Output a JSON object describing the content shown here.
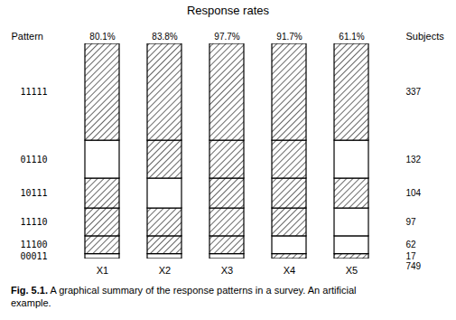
{
  "chart_data": {
    "type": "bar",
    "stacked": true,
    "title": "Response rates",
    "categories": [
      "X1",
      "X2",
      "X3",
      "X4",
      "X5"
    ],
    "top_labels": [
      "80.1%",
      "83.8%",
      "97.7%",
      "91.7%",
      "61.1%"
    ],
    "series": [
      {
        "name": "00011",
        "values": [
          17,
          17,
          17,
          17,
          17
        ]
      },
      {
        "name": "11100",
        "values": [
          62,
          62,
          62,
          62,
          62
        ]
      },
      {
        "name": "11110",
        "values": [
          97,
          97,
          97,
          97,
          97
        ]
      },
      {
        "name": "10111",
        "values": [
          104,
          104,
          104,
          104,
          104
        ]
      },
      {
        "name": "01110",
        "values": [
          132,
          132,
          132,
          132,
          132
        ]
      },
      {
        "name": "11111",
        "values": [
          337,
          337,
          337,
          337,
          337
        ]
      }
    ],
    "row_header": "Pattern",
    "value_header": "Subjects",
    "total": 749,
    "ylim": [
      0,
      749
    ],
    "tick_labels": "x",
    "caption_bold": "Fig. 5.1.",
    "caption": "A graphical summary of the response patterns in a survey. An artificial\nexample."
  }
}
